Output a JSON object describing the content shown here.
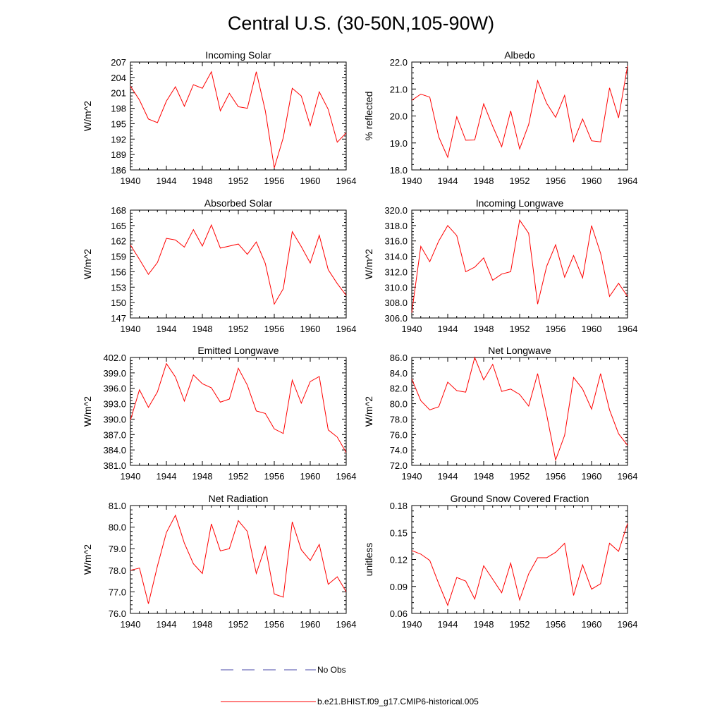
{
  "title": "Central U.S. (30-50N,105-90W)",
  "legend": {
    "obs_label": "No Obs",
    "obs_color": "#4a4aa8",
    "model_label": "b.e21.BHIST.f09_g17.CMIP6-historical.005",
    "model_color": "#ff0000"
  },
  "chart_data": [
    {
      "type": "line",
      "title": "Incoming Solar",
      "ylabel": "W/m^2",
      "xlim": [
        1940,
        1964
      ],
      "ylim": [
        186,
        207
      ],
      "yticks": [
        "186",
        "189",
        "192",
        "195",
        "198",
        "201",
        "204",
        "207"
      ],
      "xticks": [
        "1940",
        "1944",
        "1948",
        "1952",
        "1956",
        "1960",
        "1964"
      ],
      "series": [
        {
          "x": [
            1940,
            1941,
            1942,
            1943,
            1944,
            1945,
            1946,
            1947,
            1948,
            1949,
            1950,
            1951,
            1952,
            1953,
            1954,
            1955,
            1956,
            1957,
            1958,
            1959,
            1960,
            1961,
            1962,
            1963,
            1964
          ],
          "values": [
            202.3,
            199.6,
            195.9,
            195.2,
            199.4,
            202.2,
            198.4,
            202.6,
            201.9,
            205.1,
            197.5,
            200.9,
            198.3,
            198.0,
            205.1,
            197.5,
            186.4,
            192.3,
            201.9,
            200.4,
            194.6,
            201.2,
            197.8,
            191.4,
            193.2
          ]
        }
      ]
    },
    {
      "type": "line",
      "title": "Albedo",
      "ylabel": "% reflected",
      "xlim": [
        1940,
        1964
      ],
      "ylim": [
        18.0,
        22.0
      ],
      "yticks": [
        "18.0",
        "19.0",
        "20.0",
        "21.0",
        "22.0"
      ],
      "xticks": [
        "1940",
        "1944",
        "1948",
        "1952",
        "1956",
        "1960",
        "1964"
      ],
      "series": [
        {
          "x": [
            1940,
            1941,
            1942,
            1943,
            1944,
            1945,
            1946,
            1947,
            1948,
            1949,
            1950,
            1951,
            1952,
            1953,
            1954,
            1955,
            1956,
            1957,
            1958,
            1959,
            1960,
            1961,
            1962,
            1963,
            1964
          ],
          "values": [
            20.58,
            20.81,
            20.7,
            19.22,
            18.47,
            19.97,
            19.1,
            19.11,
            20.45,
            19.62,
            18.86,
            20.19,
            18.78,
            19.68,
            21.31,
            20.47,
            19.95,
            20.76,
            19.05,
            19.89,
            19.08,
            19.04,
            21.04,
            19.93,
            21.85
          ]
        }
      ]
    },
    {
      "type": "line",
      "title": "Absorbed Solar",
      "ylabel": "W/m^2",
      "xlim": [
        1940,
        1964
      ],
      "ylim": [
        147,
        168
      ],
      "yticks": [
        "147",
        "150",
        "153",
        "156",
        "159",
        "162",
        "165",
        "168"
      ],
      "xticks": [
        "1940",
        "1944",
        "1948",
        "1952",
        "1956",
        "1960",
        "1964"
      ],
      "series": [
        {
          "x": [
            1940,
            1941,
            1942,
            1943,
            1944,
            1945,
            1946,
            1947,
            1948,
            1949,
            1950,
            1951,
            1952,
            1953,
            1954,
            1955,
            1956,
            1957,
            1958,
            1959,
            1960,
            1961,
            1962,
            1963,
            1964
          ],
          "values": [
            161.2,
            158.4,
            155.5,
            157.8,
            162.5,
            162.2,
            160.8,
            164.2,
            161.0,
            165.1,
            160.6,
            161.0,
            161.4,
            159.4,
            161.8,
            157.6,
            149.7,
            152.7,
            163.8,
            160.9,
            157.7,
            163.1,
            156.4,
            153.7,
            151.4
          ]
        }
      ]
    },
    {
      "type": "line",
      "title": "Incoming Longwave",
      "ylabel": "W/m^2",
      "xlim": [
        1940,
        1964
      ],
      "ylim": [
        306.0,
        320.0
      ],
      "yticks": [
        "306.0",
        "308.0",
        "310.0",
        "312.0",
        "314.0",
        "316.0",
        "318.0",
        "320.0"
      ],
      "xticks": [
        "1940",
        "1944",
        "1948",
        "1952",
        "1956",
        "1960",
        "1964"
      ],
      "series": [
        {
          "x": [
            1940,
            1941,
            1942,
            1943,
            1944,
            1945,
            1946,
            1947,
            1948,
            1949,
            1950,
            1951,
            1952,
            1953,
            1954,
            1955,
            1956,
            1957,
            1958,
            1959,
            1960,
            1961,
            1962,
            1963,
            1964
          ],
          "values": [
            306.7,
            315.3,
            313.3,
            316.0,
            318.0,
            316.7,
            312.0,
            312.6,
            313.8,
            310.9,
            311.7,
            312.0,
            318.7,
            317.0,
            307.8,
            312.7,
            315.5,
            311.3,
            314.1,
            311.2,
            318.0,
            314.4,
            308.8,
            310.5,
            308.8
          ]
        }
      ]
    },
    {
      "type": "line",
      "title": "Emitted Longwave",
      "ylabel": "W/m^2",
      "xlim": [
        1940,
        1964
      ],
      "ylim": [
        381.0,
        402.0
      ],
      "yticks": [
        "381.0",
        "384.0",
        "387.0",
        "390.0",
        "393.0",
        "396.0",
        "399.0",
        "402.0"
      ],
      "xticks": [
        "1940",
        "1944",
        "1948",
        "1952",
        "1956",
        "1960",
        "1964"
      ],
      "series": [
        {
          "x": [
            1940,
            1941,
            1942,
            1943,
            1944,
            1945,
            1946,
            1947,
            1948,
            1949,
            1950,
            1951,
            1952,
            1953,
            1954,
            1955,
            1956,
            1957,
            1958,
            1959,
            1960,
            1961,
            1962,
            1963,
            1964
          ],
          "values": [
            389.8,
            395.7,
            392.3,
            395.3,
            400.8,
            398.2,
            393.5,
            398.6,
            396.9,
            396.1,
            393.3,
            393.9,
            399.9,
            396.6,
            391.6,
            391.1,
            388.1,
            387.2,
            397.6,
            393.1,
            397.3,
            398.3,
            387.9,
            386.5,
            383.5
          ]
        }
      ]
    },
    {
      "type": "line",
      "title": "Net Longwave",
      "ylabel": "W/m^2",
      "xlim": [
        1940,
        1964
      ],
      "ylim": [
        72.0,
        86.0
      ],
      "yticks": [
        "72.0",
        "74.0",
        "76.0",
        "78.0",
        "80.0",
        "82.0",
        "84.0",
        "86.0"
      ],
      "xticks": [
        "1940",
        "1944",
        "1948",
        "1952",
        "1956",
        "1960",
        "1964"
      ],
      "series": [
        {
          "x": [
            1940,
            1941,
            1942,
            1943,
            1944,
            1945,
            1946,
            1947,
            1948,
            1949,
            1950,
            1951,
            1952,
            1953,
            1954,
            1955,
            1956,
            1957,
            1958,
            1959,
            1960,
            1961,
            1962,
            1963,
            1964
          ],
          "values": [
            83.2,
            80.4,
            79.2,
            79.6,
            82.8,
            81.7,
            81.5,
            86.0,
            83.1,
            85.1,
            81.6,
            81.9,
            81.2,
            79.7,
            83.9,
            78.6,
            72.7,
            75.9,
            83.4,
            81.9,
            79.3,
            83.9,
            79.2,
            76.1,
            74.6
          ]
        }
      ]
    },
    {
      "type": "line",
      "title": "Net Radiation",
      "ylabel": "W/m^2",
      "xlim": [
        1940,
        1964
      ],
      "ylim": [
        76.0,
        81.0
      ],
      "yticks": [
        "76.0",
        "77.0",
        "78.0",
        "79.0",
        "80.0",
        "81.0"
      ],
      "xticks": [
        "1940",
        "1944",
        "1948",
        "1952",
        "1956",
        "1960",
        "1964"
      ],
      "series": [
        {
          "x": [
            1940,
            1941,
            1942,
            1943,
            1944,
            1945,
            1946,
            1947,
            1948,
            1949,
            1950,
            1951,
            1952,
            1953,
            1954,
            1955,
            1956,
            1957,
            1958,
            1959,
            1960,
            1961,
            1962,
            1963,
            1964
          ],
          "values": [
            78.0,
            78.1,
            76.45,
            78.2,
            79.75,
            80.55,
            79.25,
            78.3,
            77.85,
            80.15,
            78.9,
            79.0,
            80.3,
            79.8,
            77.85,
            79.1,
            76.9,
            76.75,
            80.25,
            78.95,
            78.45,
            79.2,
            77.35,
            77.7,
            77.0
          ]
        }
      ]
    },
    {
      "type": "line",
      "title": "Ground Snow Covered Fraction",
      "ylabel": "unitless",
      "xlim": [
        1940,
        1964
      ],
      "ylim": [
        0.06,
        0.18
      ],
      "yticks": [
        "0.06",
        "0.09",
        "0.12",
        "0.15",
        "0.18"
      ],
      "xticks": [
        "1940",
        "1944",
        "1948",
        "1952",
        "1956",
        "1960",
        "1964"
      ],
      "series": [
        {
          "x": [
            1940,
            1941,
            1942,
            1943,
            1944,
            1945,
            1946,
            1947,
            1948,
            1949,
            1950,
            1951,
            1952,
            1953,
            1954,
            1955,
            1956,
            1957,
            1958,
            1959,
            1960,
            1961,
            1962,
            1963,
            1964
          ],
          "values": [
            0.13,
            0.126,
            0.119,
            0.093,
            0.069,
            0.1,
            0.096,
            0.076,
            0.113,
            0.098,
            0.083,
            0.116,
            0.075,
            0.104,
            0.122,
            0.122,
            0.128,
            0.138,
            0.08,
            0.114,
            0.087,
            0.093,
            0.138,
            0.129,
            0.16
          ]
        }
      ]
    }
  ]
}
